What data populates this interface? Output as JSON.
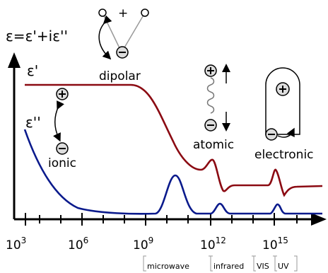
{
  "formula": "ε=ε'+iε''",
  "series_labels": {
    "real": "ε'",
    "imag": "ε''"
  },
  "mechanisms": {
    "dipolar": "dipolar",
    "ionic": "ionic",
    "atomic": "atomic",
    "electronic": "electronic"
  },
  "symbols": {
    "plus": "+",
    "plus_charge": "+",
    "minus_charge": "−"
  },
  "x_ticks": [
    {
      "base": "10",
      "exp": "3"
    },
    {
      "base": "10",
      "exp": "6"
    },
    {
      "base": "10",
      "exp": "9"
    },
    {
      "base": "10",
      "exp": "12"
    },
    {
      "base": "10",
      "exp": "15"
    }
  ],
  "bands": [
    "microwave",
    "infrared",
    "VIS",
    "UV"
  ],
  "colors": {
    "real": "#8b0a12",
    "imag": "#0a1a8c",
    "axis": "#000000",
    "band_bracket": "#9a9a9a"
  }
}
